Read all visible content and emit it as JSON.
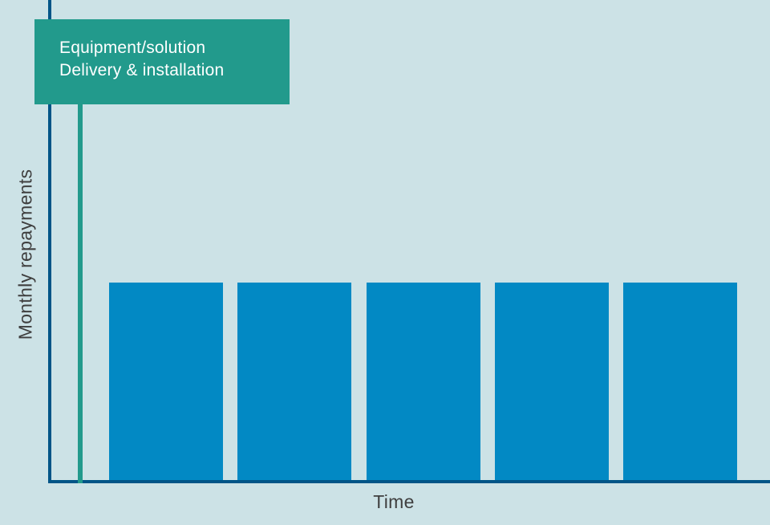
{
  "callout": {
    "line1": "Equipment/solution",
    "line2": "Delivery & installation"
  },
  "axis_labels": {
    "y": "Monthly repayments",
    "x": "Time"
  },
  "chart_data": {
    "type": "bar",
    "title": "",
    "xlabel": "Time",
    "ylabel": "Monthly repayments",
    "categories": [
      "",
      "",
      "",
      "",
      ""
    ],
    "values": [
      1,
      1,
      1,
      1,
      1
    ],
    "ylim": [
      0,
      2.45
    ],
    "grid": false,
    "legend": false,
    "tick_labels": false,
    "annotations": [
      {
        "type": "vertical-event-line",
        "label": "Equipment/solution Delivery & installation",
        "x_position": "start-of-time-axis-before-first-bar"
      }
    ]
  },
  "colors": {
    "background": "#cce2e6",
    "axis": "#005587",
    "bar": "#0289c4",
    "event_line": "#229a8c",
    "callout_bg": "#229a8c",
    "callout_text": "#ffffff",
    "label_text": "#3f3f3f"
  }
}
